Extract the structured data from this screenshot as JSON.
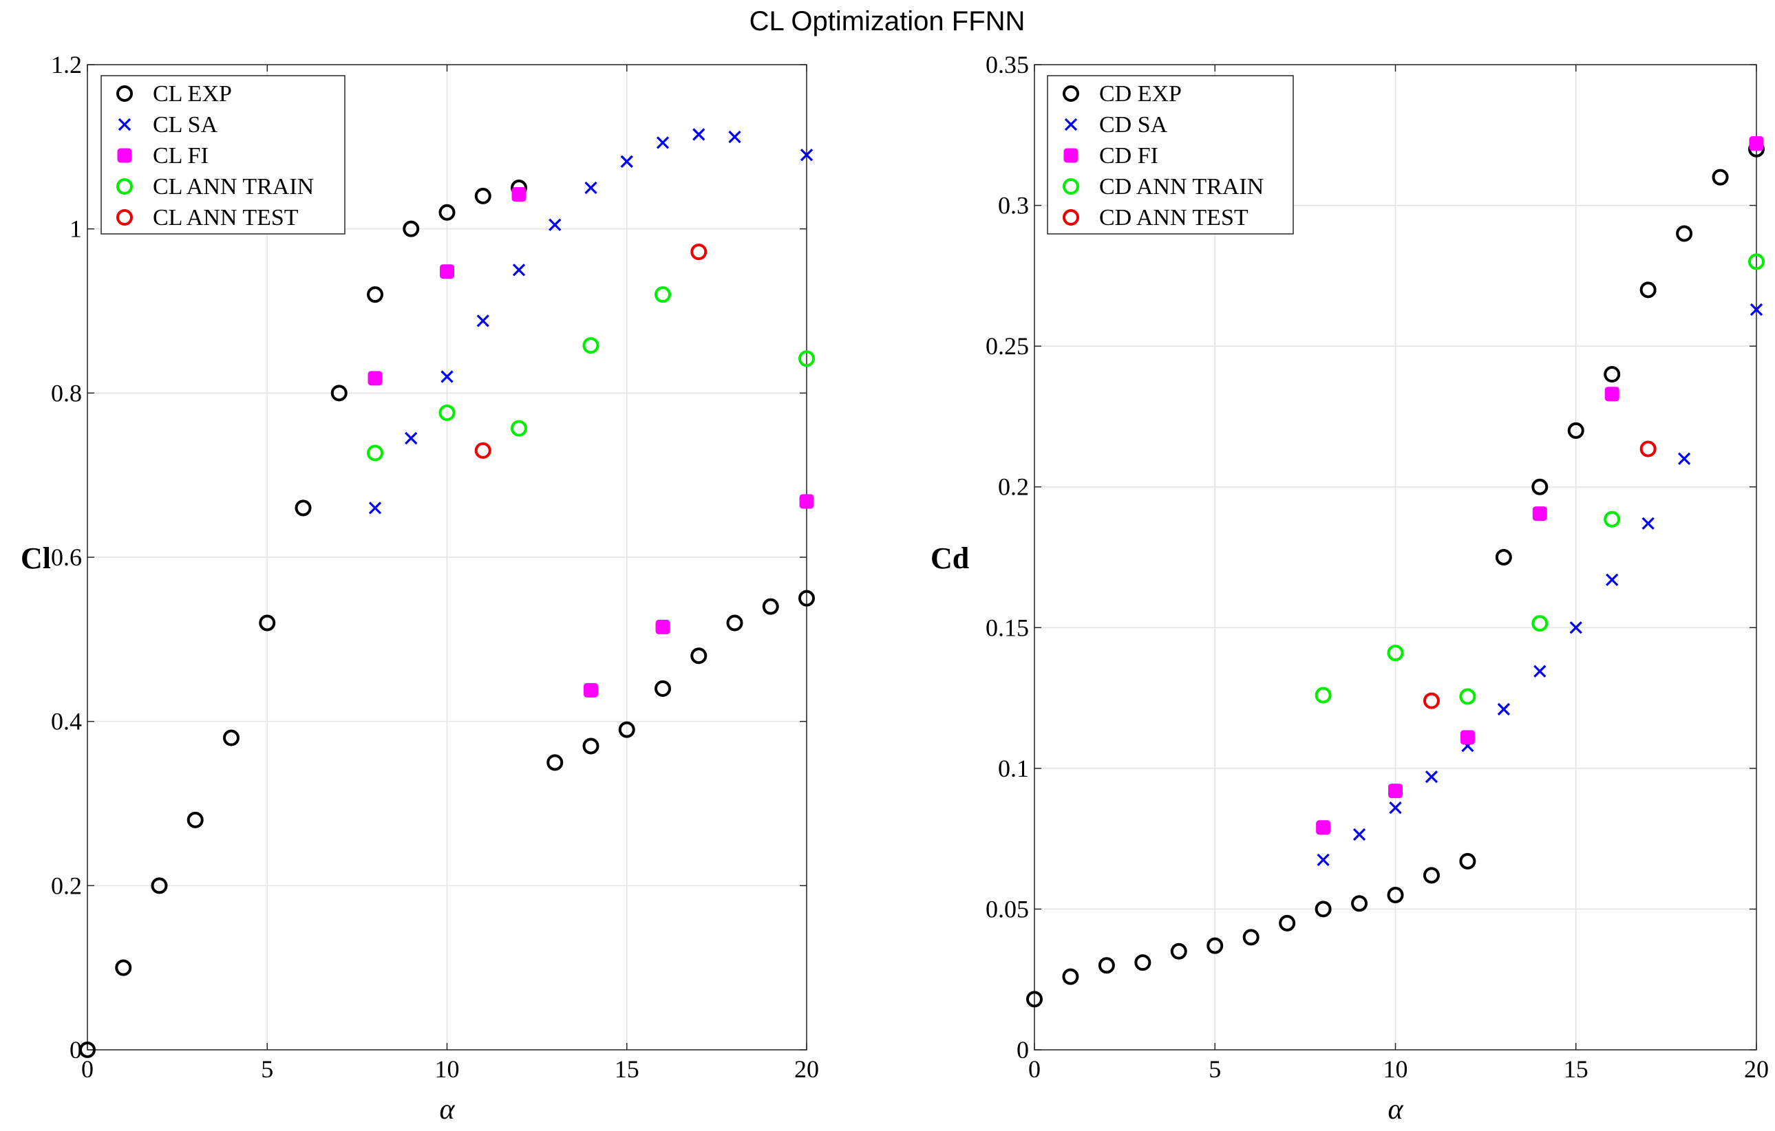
{
  "title": "CL Optimization FFNN",
  "colors": {
    "exp": "#000000",
    "sa": "#0000ff",
    "fi": "#ff00ff",
    "train": "#00ee00",
    "test": "#ee0000"
  },
  "chart_data": [
    {
      "type": "scatter",
      "xlabel": "α",
      "ylabel": "Cl",
      "xlim": [
        0,
        20
      ],
      "ylim": [
        0,
        1.2
      ],
      "xticks": [
        0,
        5,
        10,
        15,
        20
      ],
      "yticks": [
        0,
        0.2,
        0.4,
        0.6,
        0.8,
        1,
        1.2
      ],
      "ytick_labels": [
        "0",
        "0.2",
        "0.4",
        "0.6",
        "0.8",
        "1",
        "1.2"
      ],
      "xtick_labels": [
        "0",
        "5",
        "10",
        "15",
        "20"
      ],
      "grid": true,
      "legend_position": "top-left",
      "series": [
        {
          "name": "CL EXP",
          "marker": "circle",
          "color": "#000000",
          "x": [
            0,
            1,
            2,
            3,
            4,
            5,
            6,
            7,
            8,
            9,
            10,
            11,
            12,
            13,
            14,
            15,
            16,
            17,
            18,
            19,
            20
          ],
          "y": [
            0,
            0.1,
            0.2,
            0.28,
            0.38,
            0.52,
            0.66,
            0.8,
            0.92,
            1.0,
            1.02,
            1.04,
            1.05,
            0.35,
            0.37,
            0.39,
            0.44,
            0.48,
            0.52,
            0.54,
            0.55
          ]
        },
        {
          "name": "CL SA",
          "marker": "x",
          "color": "#0000ff",
          "x": [
            8,
            9,
            10,
            11,
            12,
            13,
            14,
            15,
            16,
            17,
            18,
            20
          ],
          "y": [
            0.66,
            0.745,
            0.82,
            0.888,
            0.95,
            1.005,
            1.05,
            1.082,
            1.105,
            1.115,
            1.112,
            1.09
          ]
        },
        {
          "name": "CL FI",
          "marker": "square",
          "color": "#ff00ff",
          "x": [
            8,
            10,
            12,
            14,
            16,
            20
          ],
          "y": [
            0.818,
            0.948,
            1.042,
            0.438,
            0.515,
            0.668
          ]
        },
        {
          "name": "CL ANN TRAIN",
          "marker": "circle",
          "color": "#00ee00",
          "x": [
            8,
            10,
            12,
            14,
            16,
            20
          ],
          "y": [
            0.727,
            0.776,
            0.757,
            0.858,
            0.92,
            0.842
          ]
        },
        {
          "name": "CL  ANN TEST",
          "marker": "circle",
          "color": "#ee0000",
          "x": [
            11,
            17
          ],
          "y": [
            0.73,
            0.972
          ]
        }
      ]
    },
    {
      "type": "scatter",
      "xlabel": "α",
      "ylabel": "Cd",
      "xlim": [
        0,
        20
      ],
      "ylim": [
        0,
        0.35
      ],
      "xticks": [
        0,
        5,
        10,
        15,
        20
      ],
      "yticks": [
        0,
        0.05,
        0.1,
        0.15,
        0.2,
        0.25,
        0.3,
        0.35
      ],
      "ytick_labels": [
        "0",
        "0.05",
        "0.1",
        "0.15",
        "0.2",
        "0.25",
        "0.3",
        "0.35"
      ],
      "xtick_labels": [
        "0",
        "5",
        "10",
        "15",
        "20"
      ],
      "grid": true,
      "legend_position": "top-left",
      "series": [
        {
          "name": "CD EXP",
          "marker": "circle",
          "color": "#000000",
          "x": [
            0,
            1,
            2,
            3,
            4,
            5,
            6,
            7,
            8,
            9,
            10,
            11,
            12,
            13,
            14,
            15,
            16,
            17,
            18,
            19,
            20
          ],
          "y": [
            0.018,
            0.026,
            0.03,
            0.031,
            0.035,
            0.037,
            0.04,
            0.045,
            0.05,
            0.052,
            0.055,
            0.062,
            0.067,
            0.175,
            0.2,
            0.22,
            0.24,
            0.27,
            0.29,
            0.31,
            0.32
          ]
        },
        {
          "name": "CD SA",
          "marker": "x",
          "color": "#0000ff",
          "x": [
            8,
            9,
            10,
            11,
            12,
            13,
            14,
            15,
            16,
            17,
            18,
            20
          ],
          "y": [
            0.0675,
            0.0765,
            0.086,
            0.097,
            0.108,
            0.121,
            0.1345,
            0.15,
            0.167,
            0.187,
            0.21,
            0.263
          ]
        },
        {
          "name": "CD FI",
          "marker": "square",
          "color": "#ff00ff",
          "x": [
            8,
            10,
            12,
            14,
            16,
            20
          ],
          "y": [
            0.079,
            0.092,
            0.111,
            0.1905,
            0.233,
            0.322
          ]
        },
        {
          "name": "CD ANN TRAIN",
          "marker": "circle",
          "color": "#00ee00",
          "x": [
            8,
            10,
            12,
            14,
            16,
            20
          ],
          "y": [
            0.126,
            0.141,
            0.1255,
            0.1515,
            0.1885,
            0.28
          ]
        },
        {
          "name": "CD ANN TEST",
          "marker": "circle",
          "color": "#ee0000",
          "x": [
            11,
            17
          ],
          "y": [
            0.124,
            0.2135
          ]
        }
      ]
    }
  ]
}
